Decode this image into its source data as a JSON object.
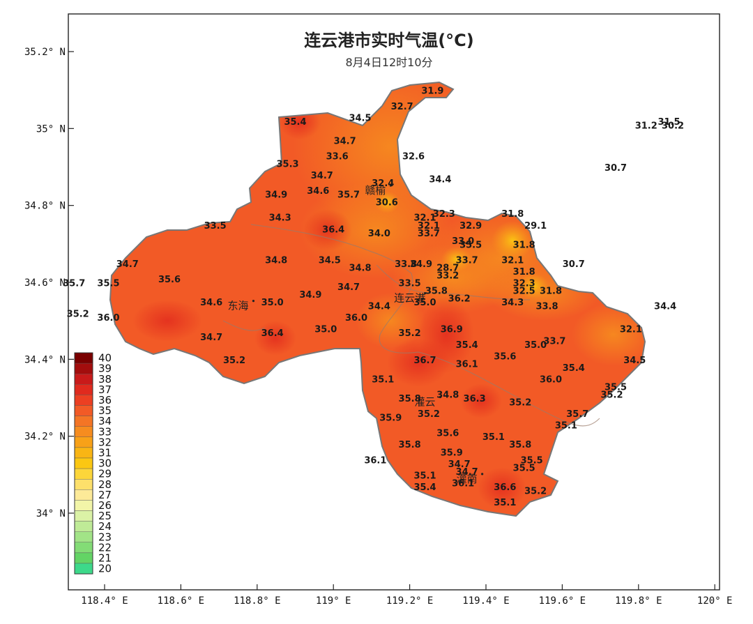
{
  "title": "连云港市实时气温(°C)",
  "subtitle": "8月4日12时10分",
  "axes": {
    "lon_ticks": [
      "118.4° E",
      "118.6° E",
      "118.8° E",
      "119° E",
      "119.2° E",
      "119.4° E",
      "119.6° E",
      "119.8° E",
      "120° E"
    ],
    "lat_ticks": [
      "35.2° N",
      "35° N",
      "34.8° N",
      "34.6° N",
      "34.4° N",
      "34.2° N",
      "34° N"
    ]
  },
  "legend": {
    "levels": [
      {
        "label": "40",
        "color": "#7a0000"
      },
      {
        "label": "39",
        "color": "#a30d0d"
      },
      {
        "label": "38",
        "color": "#c91a1a"
      },
      {
        "label": "37",
        "color": "#e02a1e"
      },
      {
        "label": "36",
        "color": "#ec3f22"
      },
      {
        "label": "35",
        "color": "#f25a26"
      },
      {
        "label": "34",
        "color": "#f47525"
      },
      {
        "label": "33",
        "color": "#f68c1f"
      },
      {
        "label": "32",
        "color": "#f8a118"
      },
      {
        "label": "31",
        "color": "#f9b514"
      },
      {
        "label": "30",
        "color": "#fbc712"
      },
      {
        "label": "29",
        "color": "#fcd63a"
      },
      {
        "label": "28",
        "color": "#fde06b"
      },
      {
        "label": "27",
        "color": "#fdea98"
      },
      {
        "label": "26",
        "color": "#f2f5a8"
      },
      {
        "label": "25",
        "color": "#dbf2a6"
      },
      {
        "label": "24",
        "color": "#bfeb97"
      },
      {
        "label": "23",
        "color": "#a2e487"
      },
      {
        "label": "22",
        "color": "#83dc76"
      },
      {
        "label": "21",
        "color": "#63d465"
      },
      {
        "label": "20",
        "color": "#3dd98a"
      }
    ]
  },
  "cities": [
    {
      "name": "东海",
      "lon": 118.75,
      "lat": 34.53
    },
    {
      "name": "连云港",
      "lon": 119.2,
      "lat": 34.55
    },
    {
      "name": "赣榆",
      "lon": 119.11,
      "lat": 34.83
    },
    {
      "name": "灌云",
      "lon": 119.24,
      "lat": 34.28
    },
    {
      "name": "灌南",
      "lon": 119.35,
      "lat": 34.08
    }
  ],
  "stations": [
    {
      "v": "31.9",
      "lon": 119.26,
      "lat": 35.09
    },
    {
      "v": "32.7",
      "lon": 119.18,
      "lat": 35.05
    },
    {
      "v": "34.5",
      "lon": 119.07,
      "lat": 35.02
    },
    {
      "v": "35.4",
      "lon": 118.9,
      "lat": 35.01
    },
    {
      "v": "34.7",
      "lon": 119.03,
      "lat": 34.96
    },
    {
      "v": "33.6",
      "lon": 119.01,
      "lat": 34.92
    },
    {
      "v": "32.6",
      "lon": 119.21,
      "lat": 34.92
    },
    {
      "v": "35.3",
      "lon": 118.88,
      "lat": 34.9
    },
    {
      "v": "34.7",
      "lon": 118.97,
      "lat": 34.87
    },
    {
      "v": "34.4",
      "lon": 119.28,
      "lat": 34.86
    },
    {
      "v": "32.4",
      "lon": 119.13,
      "lat": 34.85
    },
    {
      "v": "34.9",
      "lon": 118.85,
      "lat": 34.82
    },
    {
      "v": "34.6",
      "lon": 118.96,
      "lat": 34.83
    },
    {
      "v": "35.7",
      "lon": 119.04,
      "lat": 34.82
    },
    {
      "v": "30.6",
      "lon": 119.14,
      "lat": 34.8
    },
    {
      "v": "32.3",
      "lon": 119.29,
      "lat": 34.77
    },
    {
      "v": "31.8",
      "lon": 119.47,
      "lat": 34.77
    },
    {
      "v": "34.3",
      "lon": 118.86,
      "lat": 34.76
    },
    {
      "v": "33.5",
      "lon": 118.69,
      "lat": 34.74
    },
    {
      "v": "32.1",
      "lon": 119.24,
      "lat": 34.76
    },
    {
      "v": "32.1",
      "lon": 119.25,
      "lat": 34.74
    },
    {
      "v": "33.7",
      "lon": 119.25,
      "lat": 34.72
    },
    {
      "v": "36.4",
      "lon": 119.0,
      "lat": 34.73
    },
    {
      "v": "34.0",
      "lon": 119.12,
      "lat": 34.72
    },
    {
      "v": "32.9",
      "lon": 119.36,
      "lat": 34.74
    },
    {
      "v": "29.1",
      "lon": 119.53,
      "lat": 34.74
    },
    {
      "v": "33.0",
      "lon": 119.34,
      "lat": 34.7
    },
    {
      "v": "35.5",
      "lon": 119.36,
      "lat": 34.69
    },
    {
      "v": "31.8",
      "lon": 119.5,
      "lat": 34.69
    },
    {
      "v": "34.7",
      "lon": 118.46,
      "lat": 34.64
    },
    {
      "v": "34.8",
      "lon": 118.85,
      "lat": 34.65
    },
    {
      "v": "34.5",
      "lon": 118.99,
      "lat": 34.65
    },
    {
      "v": "34.8",
      "lon": 119.07,
      "lat": 34.63
    },
    {
      "v": "33.8",
      "lon": 119.19,
      "lat": 34.64
    },
    {
      "v": "34.9",
      "lon": 119.23,
      "lat": 34.64
    },
    {
      "v": "33.7",
      "lon": 119.35,
      "lat": 34.65
    },
    {
      "v": "32.1",
      "lon": 119.47,
      "lat": 34.65
    },
    {
      "v": "30.7",
      "lon": 119.63,
      "lat": 34.64
    },
    {
      "v": "28.7",
      "lon": 119.3,
      "lat": 34.63
    },
    {
      "v": "33.2",
      "lon": 119.3,
      "lat": 34.61
    },
    {
      "v": "31.8",
      "lon": 119.5,
      "lat": 34.62
    },
    {
      "v": "35.7",
      "lon": 118.32,
      "lat": 34.59
    },
    {
      "v": "35.5",
      "lon": 118.41,
      "lat": 34.59
    },
    {
      "v": "35.6",
      "lon": 118.57,
      "lat": 34.6
    },
    {
      "v": "34.7",
      "lon": 119.04,
      "lat": 34.58
    },
    {
      "v": "34.9",
      "lon": 118.94,
      "lat": 34.56
    },
    {
      "v": "33.5",
      "lon": 119.2,
      "lat": 34.59
    },
    {
      "v": "35.8",
      "lon": 119.27,
      "lat": 34.57
    },
    {
      "v": "36.2",
      "lon": 119.33,
      "lat": 34.55
    },
    {
      "v": "32.3",
      "lon": 119.5,
      "lat": 34.59
    },
    {
      "v": "32.5",
      "lon": 119.5,
      "lat": 34.57
    },
    {
      "v": "31.8",
      "lon": 119.57,
      "lat": 34.57
    },
    {
      "v": "35.0",
      "lon": 119.24,
      "lat": 34.54
    },
    {
      "v": "34.6",
      "lon": 118.68,
      "lat": 34.54
    },
    {
      "v": "35.0",
      "lon": 118.84,
      "lat": 34.54
    },
    {
      "v": "34.4",
      "lon": 119.12,
      "lat": 34.53
    },
    {
      "v": "34.3",
      "lon": 119.47,
      "lat": 34.54
    },
    {
      "v": "33.8",
      "lon": 119.56,
      "lat": 34.53
    },
    {
      "v": "34.4",
      "lon": 119.87,
      "lat": 34.53
    },
    {
      "v": "35.2",
      "lon": 118.33,
      "lat": 34.51
    },
    {
      "v": "36.0",
      "lon": 118.41,
      "lat": 34.5
    },
    {
      "v": "36.0",
      "lon": 119.06,
      "lat": 34.5
    },
    {
      "v": "36.9",
      "lon": 119.31,
      "lat": 34.47
    },
    {
      "v": "35.2",
      "lon": 119.2,
      "lat": 34.46
    },
    {
      "v": "35.0",
      "lon": 118.98,
      "lat": 34.47
    },
    {
      "v": "32.1",
      "lon": 119.78,
      "lat": 34.47
    },
    {
      "v": "36.4",
      "lon": 118.84,
      "lat": 34.46
    },
    {
      "v": "34.7",
      "lon": 118.68,
      "lat": 34.45
    },
    {
      "v": "35.4",
      "lon": 119.35,
      "lat": 34.43
    },
    {
      "v": "35.0",
      "lon": 119.53,
      "lat": 34.43
    },
    {
      "v": "33.7",
      "lon": 119.58,
      "lat": 34.44
    },
    {
      "v": "35.6",
      "lon": 119.45,
      "lat": 34.4
    },
    {
      "v": "35.2",
      "lon": 118.74,
      "lat": 34.39
    },
    {
      "v": "36.7",
      "lon": 119.24,
      "lat": 34.39
    },
    {
      "v": "36.1",
      "lon": 119.35,
      "lat": 34.38
    },
    {
      "v": "34.5",
      "lon": 119.79,
      "lat": 34.39
    },
    {
      "v": "35.4",
      "lon": 119.63,
      "lat": 34.37
    },
    {
      "v": "35.1",
      "lon": 119.13,
      "lat": 34.34
    },
    {
      "v": "36.0",
      "lon": 119.57,
      "lat": 34.34
    },
    {
      "v": "35.5",
      "lon": 119.74,
      "lat": 34.32
    },
    {
      "v": "35.2",
      "lon": 119.73,
      "lat": 34.3
    },
    {
      "v": "34.8",
      "lon": 119.3,
      "lat": 34.3
    },
    {
      "v": "35.8",
      "lon": 119.2,
      "lat": 34.29
    },
    {
      "v": "36.3",
      "lon": 119.37,
      "lat": 34.29
    },
    {
      "v": "35.2",
      "lon": 119.49,
      "lat": 34.28
    },
    {
      "v": "35.2",
      "lon": 119.25,
      "lat": 34.25
    },
    {
      "v": "35.7",
      "lon": 119.64,
      "lat": 34.25
    },
    {
      "v": "35.9",
      "lon": 119.15,
      "lat": 34.24
    },
    {
      "v": "35.1",
      "lon": 119.61,
      "lat": 34.22
    },
    {
      "v": "35.6",
      "lon": 119.3,
      "lat": 34.2
    },
    {
      "v": "35.1",
      "lon": 119.42,
      "lat": 34.19
    },
    {
      "v": "35.8",
      "lon": 119.2,
      "lat": 34.17
    },
    {
      "v": "35.8",
      "lon": 119.49,
      "lat": 34.17
    },
    {
      "v": "35.9",
      "lon": 119.31,
      "lat": 34.15
    },
    {
      "v": "36.1",
      "lon": 119.11,
      "lat": 34.13
    },
    {
      "v": "35.5",
      "lon": 119.52,
      "lat": 34.13
    },
    {
      "v": "34.7",
      "lon": 119.33,
      "lat": 34.12
    },
    {
      "v": "35.5",
      "lon": 119.5,
      "lat": 34.11
    },
    {
      "v": "34.7",
      "lon": 119.35,
      "lat": 34.1
    },
    {
      "v": "35.1",
      "lon": 119.24,
      "lat": 34.09
    },
    {
      "v": "36.1",
      "lon": 119.34,
      "lat": 34.07
    },
    {
      "v": "35.4",
      "lon": 119.24,
      "lat": 34.06
    },
    {
      "v": "36.6",
      "lon": 119.45,
      "lat": 34.06
    },
    {
      "v": "35.2",
      "lon": 119.53,
      "lat": 34.05
    },
    {
      "v": "35.1",
      "lon": 119.45,
      "lat": 34.02
    },
    {
      "v": "31.2",
      "lon": 119.82,
      "lat": 35.0
    },
    {
      "v": "31.5",
      "lon": 119.88,
      "lat": 35.01
    },
    {
      "v": "30.2",
      "lon": 119.89,
      "lat": 35.0
    },
    {
      "v": "30.7",
      "lon": 119.74,
      "lat": 34.89
    }
  ]
}
